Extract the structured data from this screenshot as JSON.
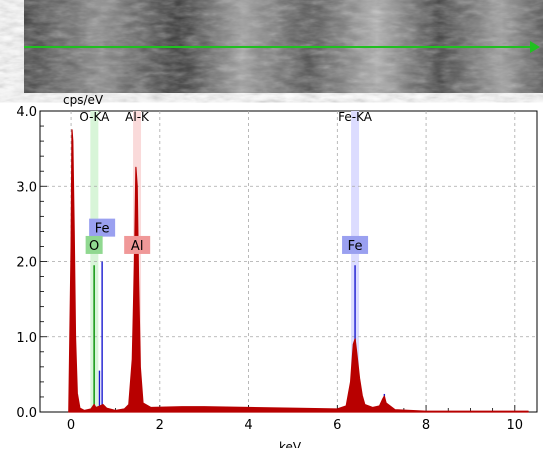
{
  "chart_data": {
    "type": "line",
    "title": "",
    "xlabel": "keV",
    "ylabel": "cps/eV",
    "xlim": [
      -0.7,
      10.5
    ],
    "ylim": [
      0,
      4.0
    ],
    "x_ticks": [
      0,
      2,
      4,
      6,
      8,
      10
    ],
    "y_ticks": [
      {
        "v": 0.0,
        "label": "0.0"
      },
      {
        "v": 1.0,
        "label": "1.0"
      },
      {
        "v": 2.0,
        "label": "2.0"
      },
      {
        "v": 3.0,
        "label": "3.0"
      },
      {
        "v": 4.0,
        "label": "4.0"
      }
    ],
    "grid": true,
    "series": [
      {
        "color": "#b80000",
        "points": [
          [
            -0.05,
            0.0
          ],
          [
            0.0,
            2.2
          ],
          [
            0.02,
            3.75
          ],
          [
            0.04,
            3.6
          ],
          [
            0.07,
            2.4
          ],
          [
            0.1,
            1.0
          ],
          [
            0.14,
            0.25
          ],
          [
            0.2,
            0.05
          ],
          [
            0.3,
            0.02
          ],
          [
            0.45,
            0.04
          ],
          [
            0.52,
            0.1
          ],
          [
            0.56,
            0.06
          ],
          [
            0.65,
            0.08
          ],
          [
            0.72,
            0.1
          ],
          [
            0.8,
            0.05
          ],
          [
            1.0,
            0.02
          ],
          [
            1.2,
            0.04
          ],
          [
            1.3,
            0.1
          ],
          [
            1.38,
            0.7
          ],
          [
            1.43,
            2.0
          ],
          [
            1.46,
            3.25
          ],
          [
            1.49,
            3.0
          ],
          [
            1.52,
            1.8
          ],
          [
            1.56,
            0.6
          ],
          [
            1.62,
            0.12
          ],
          [
            1.8,
            0.06
          ],
          [
            2.5,
            0.07
          ],
          [
            3.0,
            0.07
          ],
          [
            4.0,
            0.06
          ],
          [
            5.0,
            0.05
          ],
          [
            6.0,
            0.04
          ],
          [
            6.2,
            0.08
          ],
          [
            6.3,
            0.4
          ],
          [
            6.36,
            0.9
          ],
          [
            6.4,
            0.97
          ],
          [
            6.44,
            0.78
          ],
          [
            6.5,
            0.45
          ],
          [
            6.56,
            0.22
          ],
          [
            6.62,
            0.1
          ],
          [
            6.8,
            0.06
          ],
          [
            6.95,
            0.08
          ],
          [
            7.02,
            0.17
          ],
          [
            7.06,
            0.21
          ],
          [
            7.1,
            0.12
          ],
          [
            7.3,
            0.03
          ],
          [
            8.0,
            0.01
          ],
          [
            9.0,
            0.01
          ],
          [
            10.3,
            0.01
          ]
        ]
      }
    ],
    "lines": [
      {
        "element": "Fe",
        "x": 0.7,
        "y": 2.0,
        "color": "#1a1ad0"
      },
      {
        "element": "Fe",
        "x": 0.64,
        "y": 0.55,
        "color": "#1a1ad0"
      },
      {
        "element": "Fe",
        "x": 6.4,
        "y": 1.95,
        "color": "#1a1ad0"
      },
      {
        "element": "Fe",
        "x": 7.06,
        "y": 0.24,
        "color": "#1a1ad0"
      },
      {
        "element": "O",
        "x": 0.52,
        "y": 1.95,
        "color": "#009000"
      }
    ],
    "bands": [
      {
        "label": "O-KA",
        "x": 0.525,
        "color": "#d8f5d8"
      },
      {
        "label": "Al-K",
        "x": 1.487,
        "color": "#fadada"
      },
      {
        "label": "Fe-KA",
        "x": 6.4,
        "color": "#dcdcff"
      }
    ],
    "markers": [
      {
        "label": "Fe",
        "x": 0.7,
        "y": 2.45,
        "bg": "#9aa0f0"
      },
      {
        "label": "O",
        "x": 0.52,
        "y": 2.22,
        "bg": "#90d890"
      },
      {
        "label": "Al",
        "x": 1.49,
        "y": 2.22,
        "bg": "#f09898"
      },
      {
        "label": "Fe",
        "x": 6.4,
        "y": 2.22,
        "bg": "#9aa0f0"
      }
    ]
  }
}
